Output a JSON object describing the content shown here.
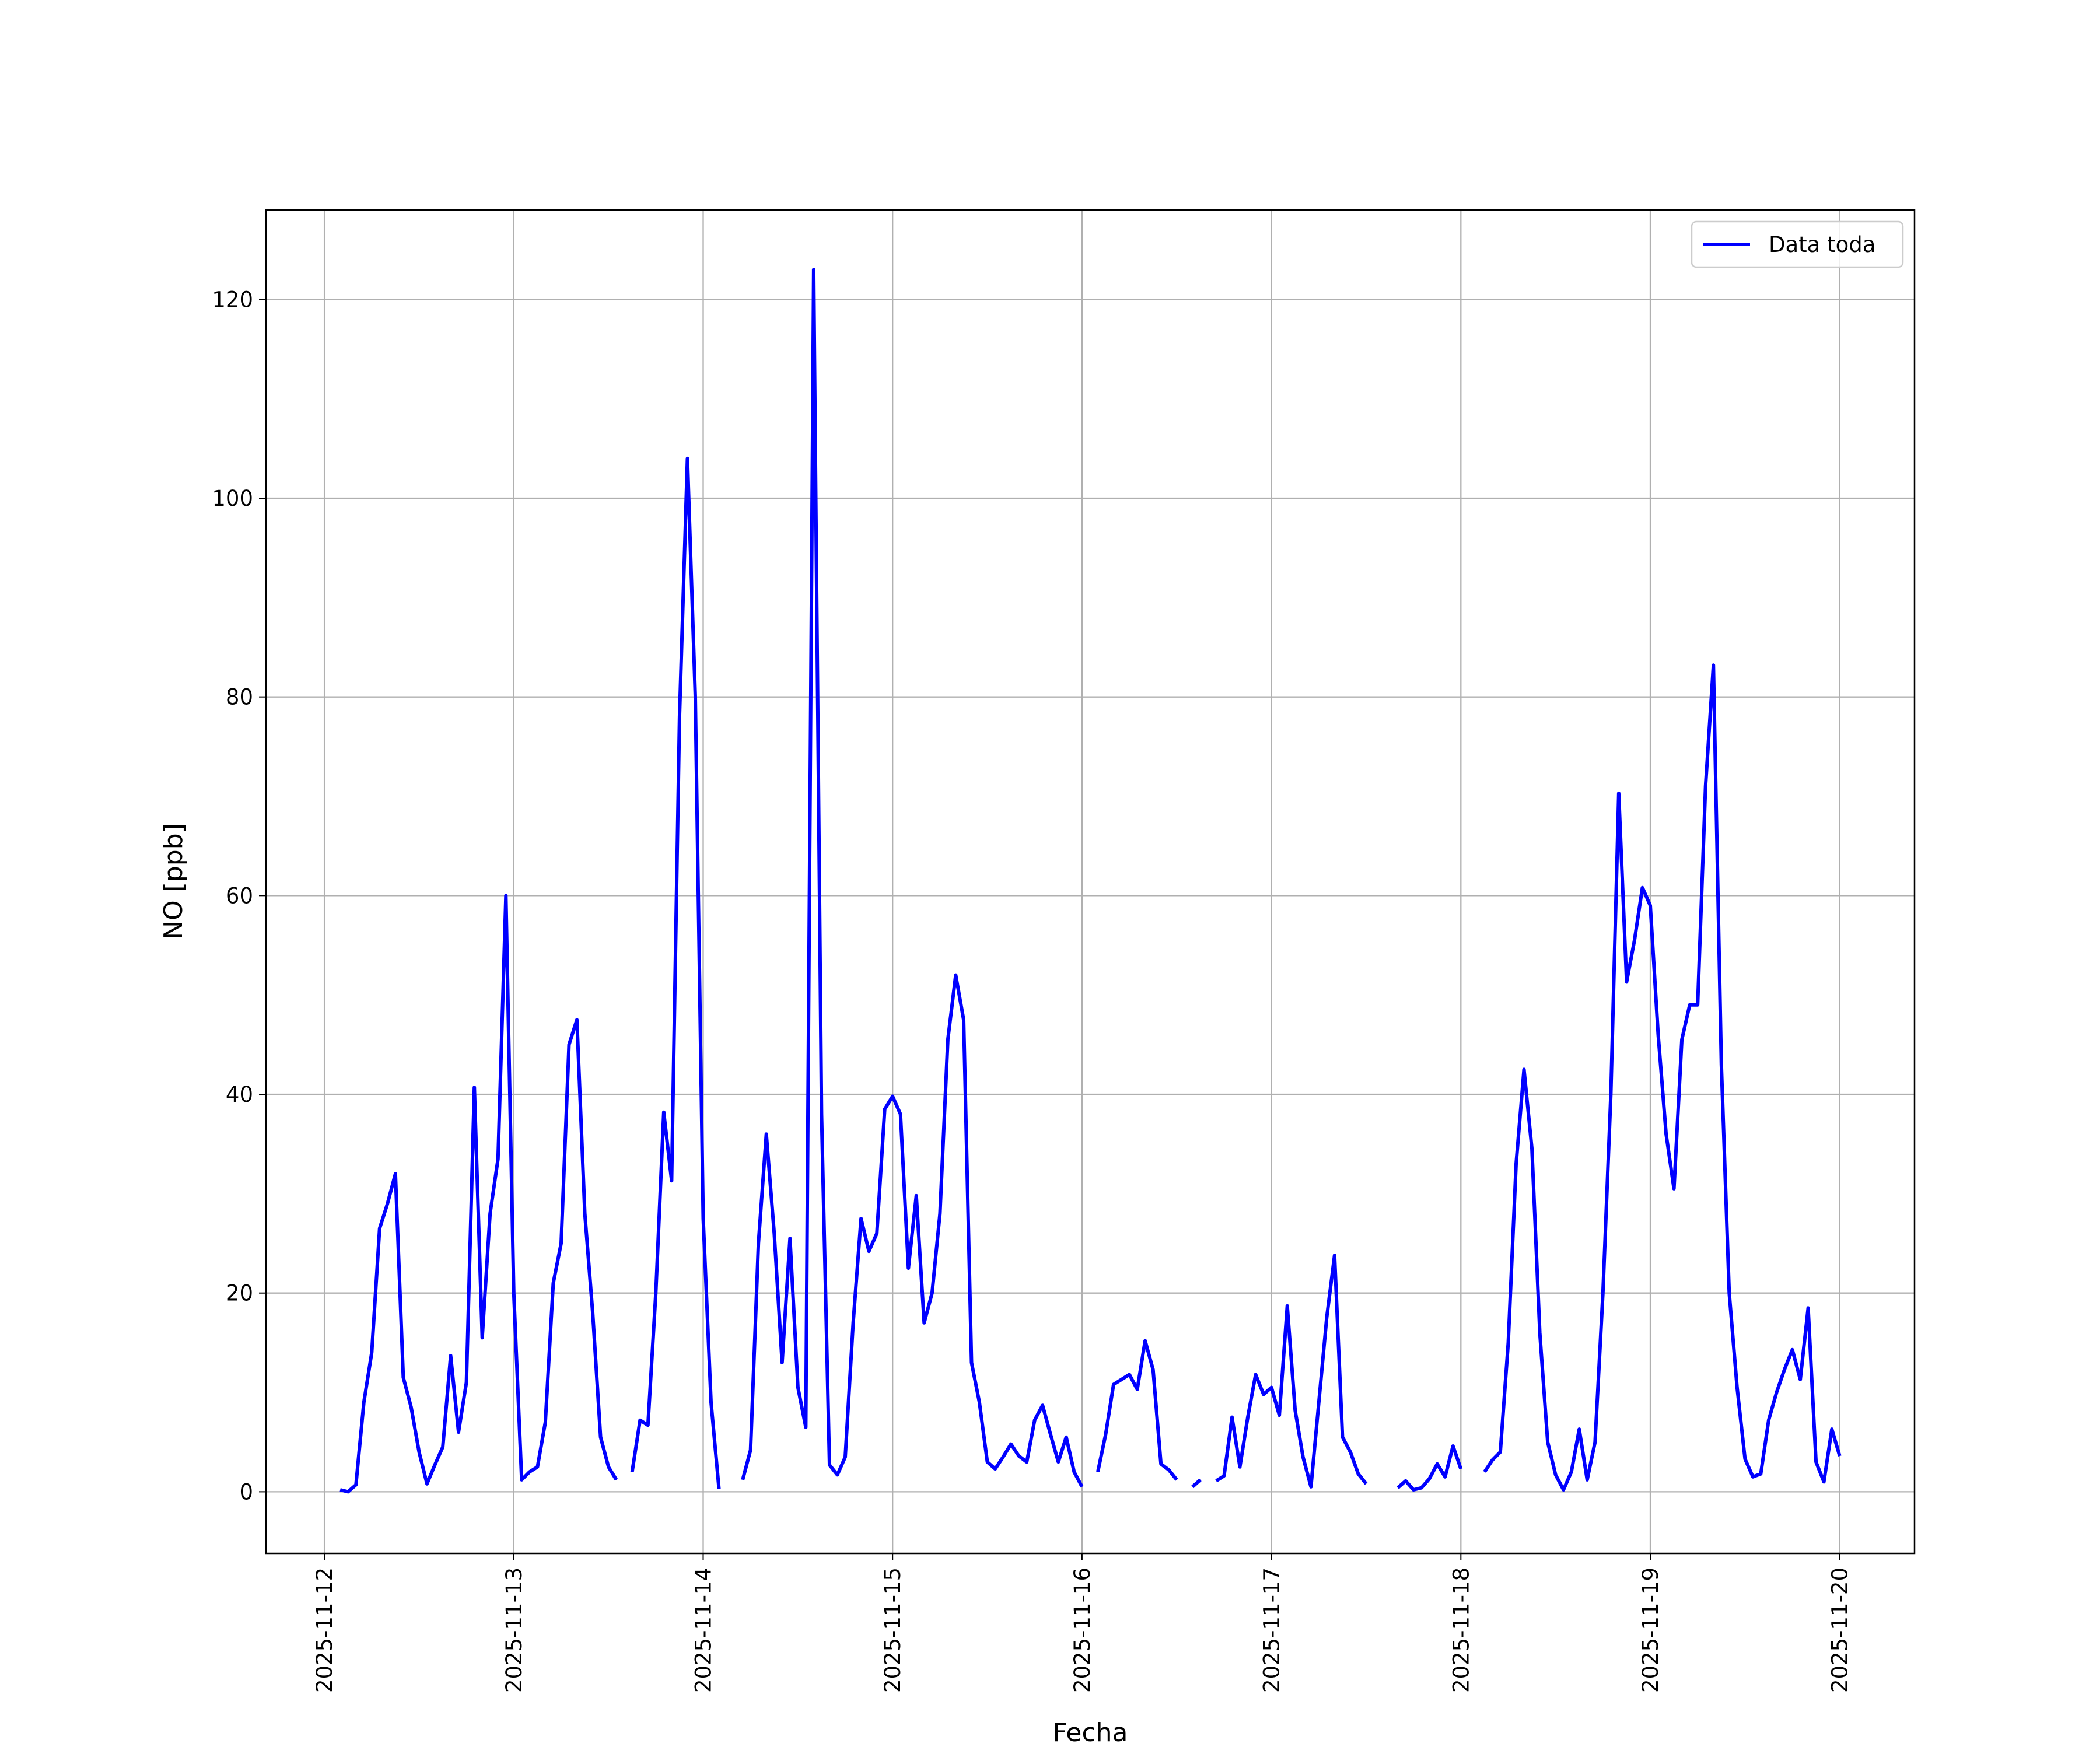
{
  "chart_data": {
    "type": "line",
    "xlabel": "Fecha",
    "ylabel": "NO [ppb]",
    "x": [
      "2025-11-12T02:00",
      "2025-11-12T03:00",
      "2025-11-12T04:00",
      "2025-11-12T05:00",
      "2025-11-12T06:00",
      "2025-11-12T07:00",
      "2025-11-12T08:00",
      "2025-11-12T09:00",
      "2025-11-12T10:00",
      "2025-11-12T11:00",
      "2025-11-12T12:00",
      "2025-11-12T13:00",
      "2025-11-12T14:00",
      "2025-11-12T15:00",
      "2025-11-12T16:00",
      "2025-11-12T17:00",
      "2025-11-12T18:00",
      "2025-11-12T19:00",
      "2025-11-12T20:00",
      "2025-11-12T21:00",
      "2025-11-12T22:00",
      "2025-11-12T23:00",
      "2025-11-13T00:00",
      "2025-11-13T01:00",
      "2025-11-13T02:00",
      "2025-11-13T03:00",
      "2025-11-13T04:00",
      "2025-11-13T05:00",
      "2025-11-13T06:00",
      "2025-11-13T07:00",
      "2025-11-13T08:00",
      "2025-11-13T09:00",
      "2025-11-13T10:00",
      "2025-11-13T11:00",
      "2025-11-13T12:00",
      "2025-11-13T13:00",
      "2025-11-13T14:00",
      "2025-11-13T15:00",
      "2025-11-13T16:00",
      "2025-11-13T17:00",
      "2025-11-13T18:00",
      "2025-11-13T19:00",
      "2025-11-13T20:00",
      "2025-11-13T21:00",
      "2025-11-13T22:00",
      "2025-11-13T23:00",
      "2025-11-14T00:00",
      "2025-11-14T01:00",
      "2025-11-14T02:00",
      "2025-11-14T03:00",
      "2025-11-14T04:00",
      "2025-11-14T05:00",
      "2025-11-14T06:00",
      "2025-11-14T07:00",
      "2025-11-14T08:00",
      "2025-11-14T09:00",
      "2025-11-14T10:00",
      "2025-11-14T11:00",
      "2025-11-14T12:00",
      "2025-11-14T13:00",
      "2025-11-14T14:00",
      "2025-11-14T15:00",
      "2025-11-14T16:00",
      "2025-11-14T17:00",
      "2025-11-14T18:00",
      "2025-11-14T19:00",
      "2025-11-14T20:00",
      "2025-11-14T21:00",
      "2025-11-14T22:00",
      "2025-11-14T23:00",
      "2025-11-15T00:00",
      "2025-11-15T01:00",
      "2025-11-15T02:00",
      "2025-11-15T03:00",
      "2025-11-15T04:00",
      "2025-11-15T05:00",
      "2025-11-15T06:00",
      "2025-11-15T07:00",
      "2025-11-15T08:00",
      "2025-11-15T09:00",
      "2025-11-15T10:00",
      "2025-11-15T11:00",
      "2025-11-15T12:00",
      "2025-11-15T13:00",
      "2025-11-15T14:00",
      "2025-11-15T15:00",
      "2025-11-15T16:00",
      "2025-11-15T17:00",
      "2025-11-15T18:00",
      "2025-11-15T19:00",
      "2025-11-15T20:00",
      "2025-11-15T21:00",
      "2025-11-15T22:00",
      "2025-11-15T23:00",
      "2025-11-16T00:00",
      "2025-11-16T01:00",
      "2025-11-16T02:00",
      "2025-11-16T03:00",
      "2025-11-16T04:00",
      "2025-11-16T05:00",
      "2025-11-16T06:00",
      "2025-11-16T07:00",
      "2025-11-16T08:00",
      "2025-11-16T09:00",
      "2025-11-16T10:00",
      "2025-11-16T11:00",
      "2025-11-16T12:00",
      "2025-11-16T13:00",
      "2025-11-16T14:00",
      "2025-11-16T15:00",
      "2025-11-16T16:00",
      "2025-11-16T17:00",
      "2025-11-16T18:00",
      "2025-11-16T19:00",
      "2025-11-16T20:00",
      "2025-11-16T21:00",
      "2025-11-16T22:00",
      "2025-11-16T23:00",
      "2025-11-17T00:00",
      "2025-11-17T01:00",
      "2025-11-17T02:00",
      "2025-11-17T03:00",
      "2025-11-17T04:00",
      "2025-11-17T05:00",
      "2025-11-17T06:00",
      "2025-11-17T07:00",
      "2025-11-17T08:00",
      "2025-11-17T09:00",
      "2025-11-17T10:00",
      "2025-11-17T11:00",
      "2025-11-17T12:00",
      "2025-11-17T13:00",
      "2025-11-17T14:00",
      "2025-11-17T15:00",
      "2025-11-17T16:00",
      "2025-11-17T17:00",
      "2025-11-17T18:00",
      "2025-11-17T19:00",
      "2025-11-17T20:00",
      "2025-11-17T21:00",
      "2025-11-17T22:00",
      "2025-11-17T23:00",
      "2025-11-18T00:00",
      "2025-11-18T01:00",
      "2025-11-18T02:00",
      "2025-11-18T03:00",
      "2025-11-18T04:00",
      "2025-11-18T05:00",
      "2025-11-18T06:00",
      "2025-11-18T07:00",
      "2025-11-18T08:00",
      "2025-11-18T09:00",
      "2025-11-18T10:00",
      "2025-11-18T11:00",
      "2025-11-18T12:00",
      "2025-11-18T13:00",
      "2025-11-18T14:00",
      "2025-11-18T15:00",
      "2025-11-18T16:00",
      "2025-11-18T17:00",
      "2025-11-18T18:00",
      "2025-11-18T19:00",
      "2025-11-18T20:00",
      "2025-11-18T21:00",
      "2025-11-18T22:00",
      "2025-11-18T23:00",
      "2025-11-19T00:00",
      "2025-11-19T01:00",
      "2025-11-19T02:00",
      "2025-11-19T03:00",
      "2025-11-19T04:00",
      "2025-11-19T05:00",
      "2025-11-19T06:00",
      "2025-11-19T07:00",
      "2025-11-19T08:00",
      "2025-11-19T09:00",
      "2025-11-19T10:00",
      "2025-11-19T11:00",
      "2025-11-19T12:00",
      "2025-11-19T13:00",
      "2025-11-19T14:00",
      "2025-11-19T15:00",
      "2025-11-19T16:00",
      "2025-11-19T17:00",
      "2025-11-19T18:00",
      "2025-11-19T19:00",
      "2025-11-19T20:00",
      "2025-11-19T21:00",
      "2025-11-19T22:00",
      "2025-11-19T23:00",
      "2025-11-20T00:00"
    ],
    "series": [
      {
        "name": "Data toda",
        "color": "#0000ff",
        "values": [
          0.2,
          0,
          0.7,
          9,
          14,
          26.5,
          29,
          32,
          11.5,
          8.5,
          4,
          0.8,
          2.7,
          4.5,
          13.7,
          6,
          11,
          40.7,
          15.5,
          28,
          33.5,
          60,
          20,
          1.2,
          2,
          2.5,
          7,
          21,
          25,
          45,
          47.5,
          28,
          18,
          5.5,
          2.5,
          1.2,
          null,
          2,
          7.2,
          6.7,
          20,
          38.2,
          31.3,
          78,
          104,
          80,
          27.5,
          9,
          0.3,
          null,
          null,
          1.2,
          4.2,
          25,
          36,
          26,
          13,
          25.5,
          10.5,
          6.5,
          123,
          38,
          2.7,
          1.7,
          3.5,
          17,
          27.5,
          24.2,
          26,
          38.5,
          39.8,
          38,
          22.5,
          29.8,
          17,
          20,
          28,
          45.5,
          52,
          47.5,
          13,
          9,
          3,
          2.3,
          3.5,
          4.8,
          3.6,
          3,
          7.2,
          8.7,
          5.8,
          3,
          5.5,
          2,
          0.5,
          null,
          2,
          5.8,
          10.8,
          11.3,
          11.8,
          10.3,
          15.2,
          12.3,
          2.8,
          2.2,
          1.2,
          null,
          0.5,
          1.2,
          null,
          1.1,
          1.6,
          7.5,
          2.5,
          7.5,
          11.8,
          9.8,
          10.5,
          7.7,
          18.7,
          8.2,
          3.5,
          0.5,
          9,
          17.5,
          23.8,
          5.5,
          4,
          1.8,
          0.8,
          null,
          null,
          null,
          0.4,
          1.1,
          0.2,
          0.4,
          1.3,
          2.8,
          1.5,
          4.6,
          2.3,
          null,
          null,
          2,
          3.2,
          4,
          15,
          33,
          42.5,
          34.5,
          16,
          5,
          1.7,
          0.2,
          2,
          6.3,
          1.2,
          5,
          20,
          40,
          70.3,
          51.3,
          55.5,
          60.8,
          59,
          46,
          36,
          30.5,
          45.5,
          49,
          49,
          71,
          83.2,
          43,
          20,
          10.5,
          3.3,
          1.5,
          1.8,
          7.2,
          10,
          12.3,
          14.3,
          11.3,
          18.5,
          3,
          1,
          6.3,
          3.6
        ]
      }
    ],
    "xlim": [
      "2025-11-11T16:36",
      "2025-11-20T09:29"
    ],
    "xticks": [
      "2025-11-12",
      "2025-11-13",
      "2025-11-14",
      "2025-11-15",
      "2025-11-16",
      "2025-11-17",
      "2025-11-18",
      "2025-11-19",
      "2025-11-20"
    ],
    "ylim": [
      -6.2,
      129
    ],
    "yticks": [
      0,
      20,
      40,
      60,
      80,
      100,
      120
    ],
    "grid": true,
    "legend": "upper right"
  }
}
